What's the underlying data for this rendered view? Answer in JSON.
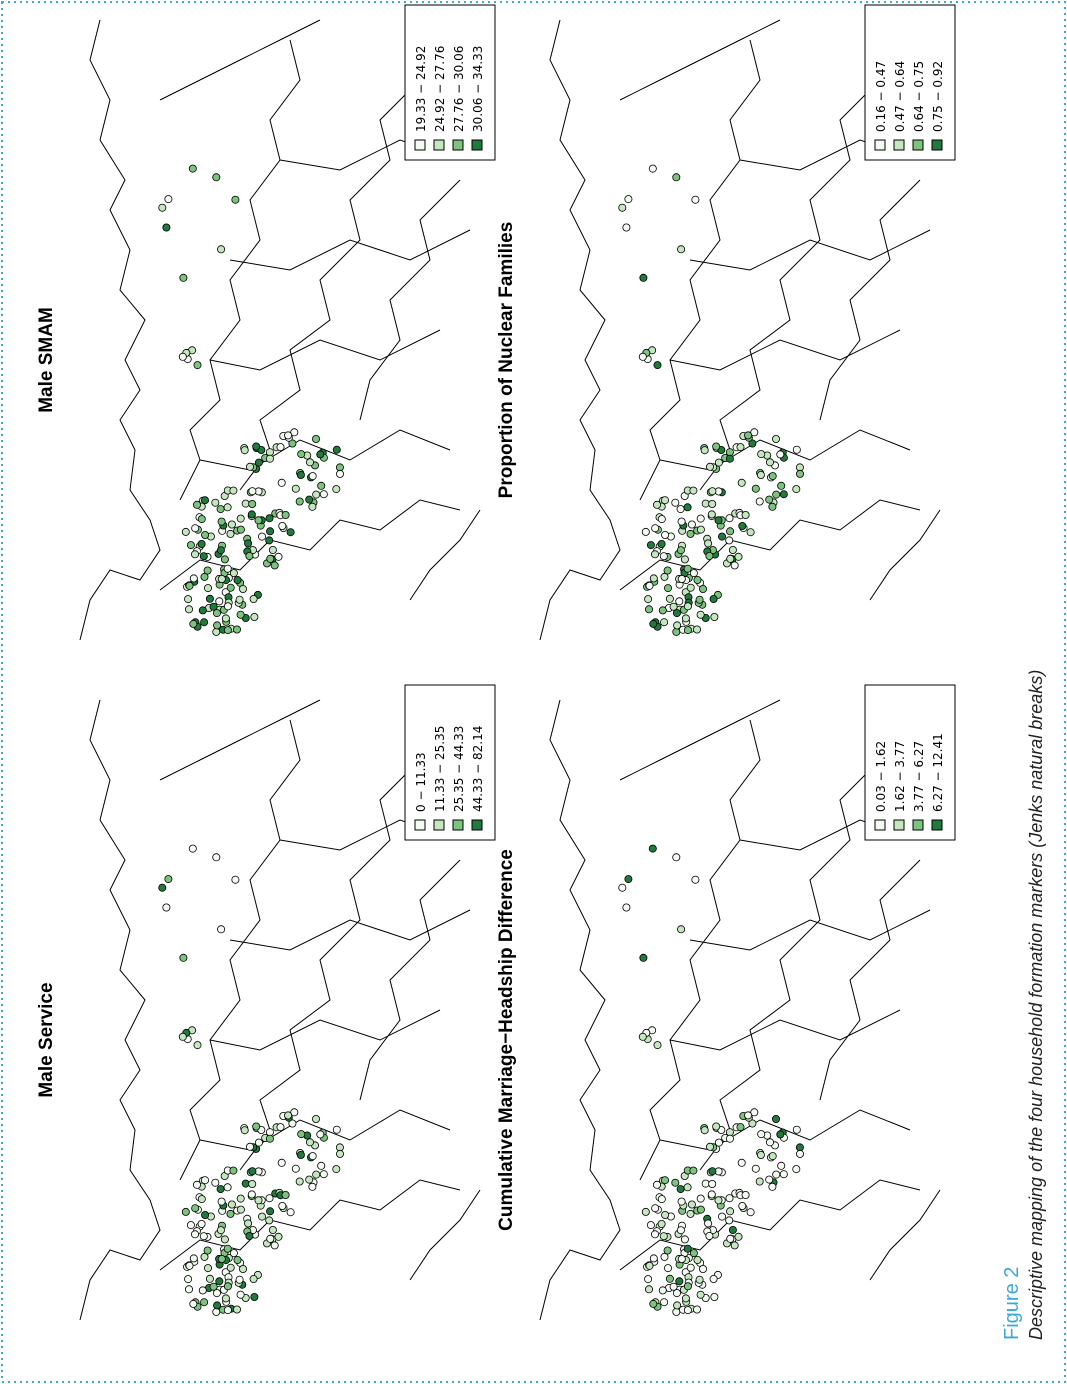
{
  "figure": {
    "label": "Figure 2",
    "caption": "Descriptive mapping of the four household formation markers (Jenks natural breaks)",
    "border_color": "#3aa8d8"
  },
  "colors": {
    "class1": "#f3faf1",
    "class2": "#c5e7bf",
    "class3": "#7cc47e",
    "class4": "#1f7a3c",
    "outline": "#000000"
  },
  "panels": [
    {
      "id": "male-service",
      "title": "Male Service",
      "legend": [
        "0 − 11.33",
        "11.33 − 25.35",
        "25.35 − 44.33",
        "44.33 − 82.14"
      ],
      "class_mix": [
        0.4,
        0.3,
        0.15,
        0.15
      ]
    },
    {
      "id": "male-smam",
      "title": "Male SMAM",
      "legend": [
        "19.33 − 24.92",
        "24.92 − 27.76",
        "27.76 − 30.06",
        "30.06 − 34.33"
      ],
      "class_mix": [
        0.25,
        0.25,
        0.3,
        0.2
      ]
    },
    {
      "id": "marriage-headship",
      "title": "Cumulative Marriage−Headship Difference",
      "legend": [
        "0.03 − 1.62",
        "1.62 − 3.77",
        "3.77 − 6.27",
        "6.27 − 12.41"
      ],
      "class_mix": [
        0.55,
        0.25,
        0.12,
        0.08
      ]
    },
    {
      "id": "nuclear-families",
      "title": "Proportion of Nuclear Families",
      "legend": [
        "0.16 − 0.47",
        "0.47 − 0.64",
        "0.64 − 0.75",
        "0.75 − 0.92"
      ],
      "class_mix": [
        0.2,
        0.3,
        0.3,
        0.2
      ]
    }
  ]
}
